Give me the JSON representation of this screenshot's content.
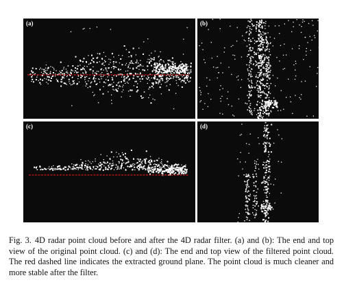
{
  "figure": {
    "panels": [
      {
        "id": "a",
        "label": "(a)",
        "view": "end",
        "state": "original",
        "ground_line": true,
        "ground_line_color": "#d11515"
      },
      {
        "id": "b",
        "label": "(b)",
        "view": "top",
        "state": "original",
        "ground_line": false
      },
      {
        "id": "c",
        "label": "(c)",
        "view": "end",
        "state": "filtered",
        "ground_line": true,
        "ground_line_color": "#d11515"
      },
      {
        "id": "d",
        "label": "(d)",
        "view": "top",
        "state": "filtered",
        "ground_line": false
      }
    ],
    "colors": {
      "background": "#0b0b0b",
      "points": "#ffffff",
      "ground_plane": "#d11515"
    }
  },
  "caption": {
    "label": "Fig. 3.",
    "text": "4D radar point cloud before and after the 4D radar filter. (a) and (b): The end and top view of the original point cloud. (c) and (d): The end and top view of the filtered point cloud. The red dashed line indicates the extracted ground plane. The point cloud is much cleaner and more stable after the filter."
  }
}
